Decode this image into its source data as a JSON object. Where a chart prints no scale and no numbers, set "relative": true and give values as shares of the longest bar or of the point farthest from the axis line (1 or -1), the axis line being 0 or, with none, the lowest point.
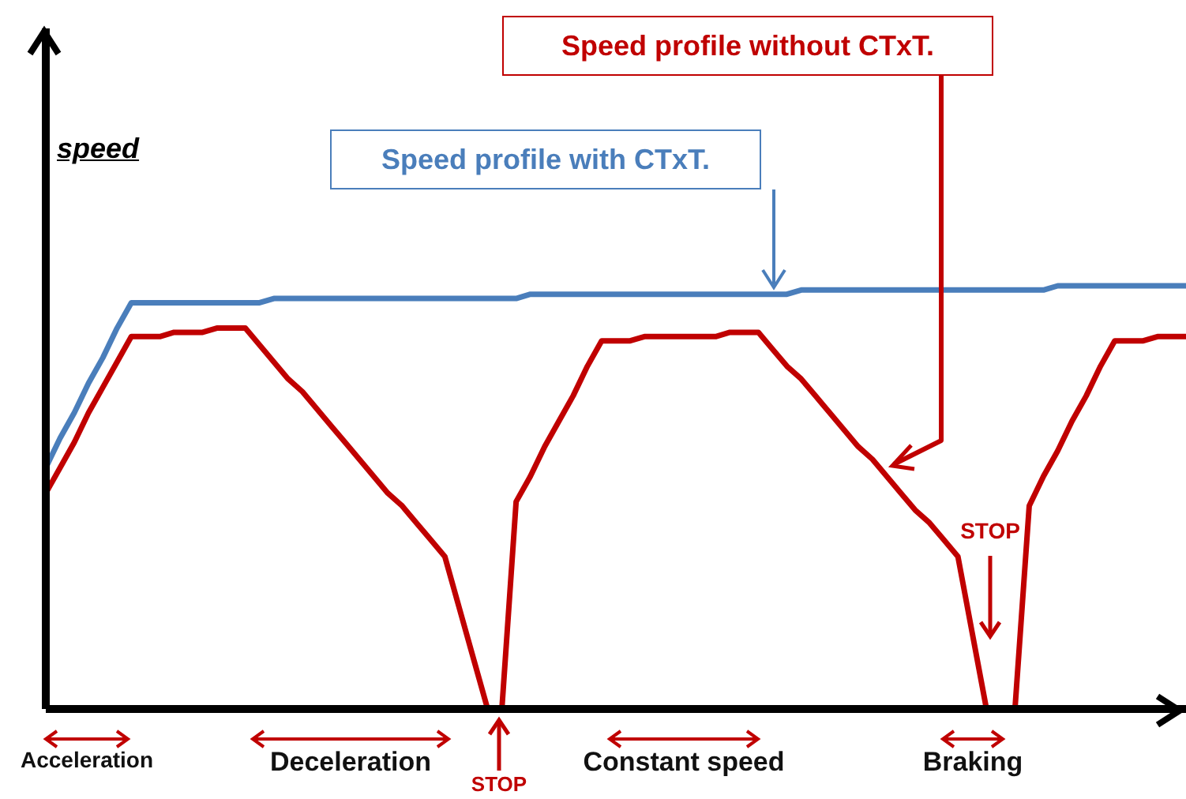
{
  "chart_data": {
    "type": "line",
    "relative": true,
    "ylabel": "speed",
    "marker": "none",
    "line_style": "solid",
    "categories": [
      null,
      null,
      null,
      null,
      null,
      null,
      null,
      null,
      null,
      null,
      null,
      null,
      null,
      null,
      null,
      null,
      null,
      null,
      null,
      null,
      null,
      null,
      null,
      null,
      null,
      null,
      null,
      null,
      null,
      null,
      null,
      null,
      null,
      null,
      null,
      null,
      null,
      null,
      null,
      null,
      null,
      null,
      null,
      null,
      null,
      null,
      null,
      null,
      null,
      null,
      null,
      null,
      null,
      null,
      null,
      null,
      null,
      null,
      null,
      null,
      null,
      null,
      null,
      null,
      null,
      null,
      null,
      null,
      null,
      null,
      null,
      null,
      null,
      null,
      null,
      null,
      null,
      null,
      null,
      null,
      null
    ],
    "series": [
      {
        "name": "Speed profile with CTxT.",
        "color": "#4a7ebb",
        "values": [
          0.57,
          0.64,
          0.7,
          0.77,
          0.83,
          0.9,
          0.96,
          0.96,
          0.96,
          0.96,
          0.96,
          0.96,
          0.96,
          0.96,
          0.96,
          0.96,
          0.97,
          0.97,
          0.97,
          0.97,
          0.97,
          0.97,
          0.97,
          0.97,
          0.97,
          0.97,
          0.97,
          0.97,
          0.97,
          0.97,
          0.97,
          0.97,
          0.97,
          0.97,
          0.98,
          0.98,
          0.98,
          0.98,
          0.98,
          0.98,
          0.98,
          0.98,
          0.98,
          0.98,
          0.98,
          0.98,
          0.98,
          0.98,
          0.98,
          0.98,
          0.98,
          0.98,
          0.98,
          0.99,
          0.99,
          0.99,
          0.99,
          0.99,
          0.99,
          0.99,
          0.99,
          0.99,
          0.99,
          0.99,
          0.99,
          0.99,
          0.99,
          0.99,
          0.99,
          0.99,
          0.99,
          1,
          1,
          1,
          1,
          1,
          1,
          1,
          1,
          1,
          1
        ]
      },
      {
        "name": "Speed profile without CTxT.",
        "color": "#c00000",
        "values": [
          0.51,
          0.57,
          0.63,
          0.7,
          0.76,
          0.82,
          0.88,
          0.88,
          0.88,
          0.89,
          0.89,
          0.89,
          0.9,
          0.9,
          0.9,
          0.86,
          0.82,
          0.78,
          0.75,
          0.71,
          0.67,
          0.63,
          0.59,
          0.55,
          0.51,
          0.48,
          0.44,
          0.4,
          0.36,
          0.24,
          0.12,
          0,
          0,
          0.49,
          0.55,
          0.62,
          0.68,
          0.74,
          0.81,
          0.87,
          0.87,
          0.87,
          0.88,
          0.88,
          0.88,
          0.88,
          0.88,
          0.88,
          0.89,
          0.89,
          0.89,
          0.85,
          0.81,
          0.78,
          0.74,
          0.7,
          0.66,
          0.62,
          0.59,
          0.55,
          0.51,
          0.47,
          0.44,
          0.4,
          0.36,
          0.18,
          0,
          0,
          0,
          0.48,
          0.55,
          0.61,
          0.68,
          0.74,
          0.81,
          0.87,
          0.87,
          0.87,
          0.88,
          0.88,
          0.88
        ]
      }
    ],
    "annotations": [
      "Acceleration",
      "Deceleration",
      "STOP",
      "Constant speed",
      "Braking",
      "STOP"
    ]
  }
}
